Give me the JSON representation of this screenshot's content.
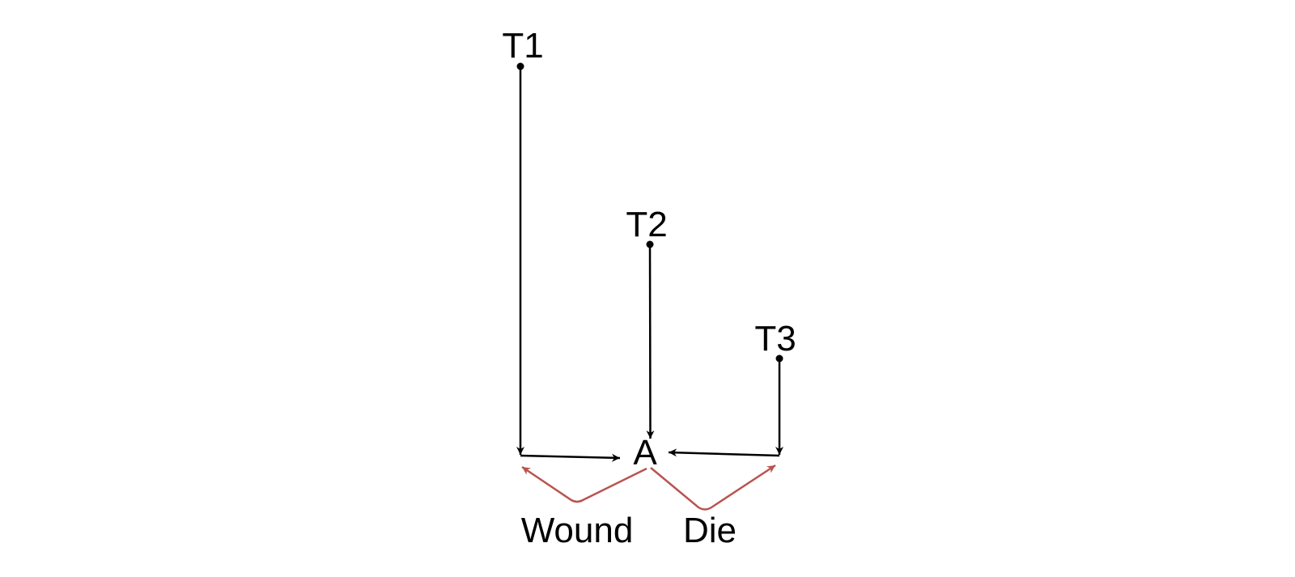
{
  "nodes": {
    "t1": "T1",
    "t2": "T2",
    "t3": "T3",
    "a": "A"
  },
  "edges": {
    "wound": "Wound",
    "die": "Die"
  },
  "colors": {
    "line": "#000000",
    "accent": "#b85450"
  }
}
